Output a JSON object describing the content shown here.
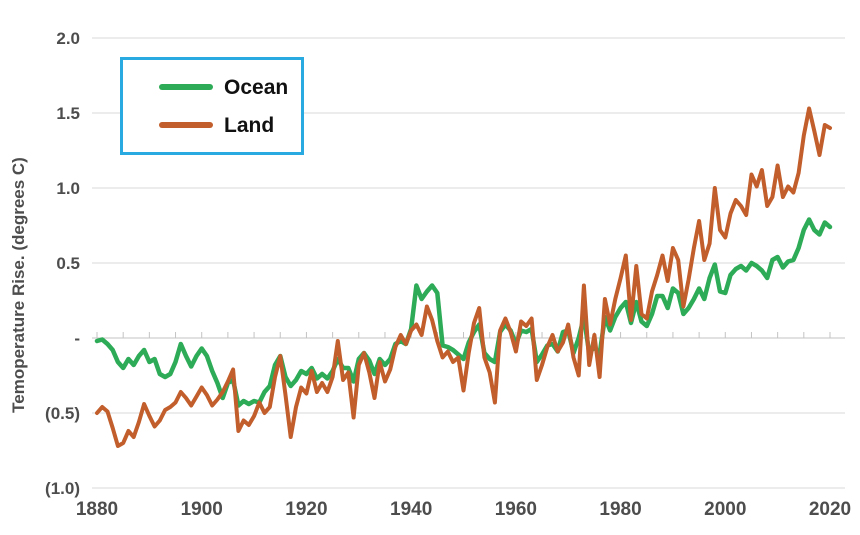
{
  "chart_data": {
    "type": "line",
    "title": "",
    "xlabel": "",
    "ylabel": "Temoperature Rise. (degrees C)",
    "xlim": [
      1880,
      2020
    ],
    "ylim": [
      -1.0,
      2.0
    ],
    "grid": true,
    "legend_position": "top-left",
    "x_ticks": [
      1880,
      1900,
      1920,
      1940,
      1960,
      1980,
      2000,
      2020
    ],
    "x_minor_tick_step": 5,
    "y_ticks": [
      {
        "value": 2.0,
        "label": "2.0"
      },
      {
        "value": 1.5,
        "label": "1.5"
      },
      {
        "value": 1.0,
        "label": "1.0"
      },
      {
        "value": 0.5,
        "label": "0.5"
      },
      {
        "value": 0.0,
        "label": "-"
      },
      {
        "value": -0.5,
        "label": "(0.5)"
      },
      {
        "value": -1.0,
        "label": "(1.0)"
      }
    ],
    "years": [
      1880,
      1881,
      1882,
      1883,
      1884,
      1885,
      1886,
      1887,
      1888,
      1889,
      1890,
      1891,
      1892,
      1893,
      1894,
      1895,
      1896,
      1897,
      1898,
      1899,
      1900,
      1901,
      1902,
      1903,
      1904,
      1905,
      1906,
      1907,
      1908,
      1909,
      1910,
      1911,
      1912,
      1913,
      1914,
      1915,
      1916,
      1917,
      1918,
      1919,
      1920,
      1921,
      1922,
      1923,
      1924,
      1925,
      1926,
      1927,
      1928,
      1929,
      1930,
      1931,
      1932,
      1933,
      1934,
      1935,
      1936,
      1937,
      1938,
      1939,
      1940,
      1941,
      1942,
      1943,
      1944,
      1945,
      1946,
      1947,
      1948,
      1949,
      1950,
      1951,
      1952,
      1953,
      1954,
      1955,
      1956,
      1957,
      1958,
      1959,
      1960,
      1961,
      1962,
      1963,
      1964,
      1965,
      1966,
      1967,
      1968,
      1969,
      1970,
      1971,
      1972,
      1973,
      1974,
      1975,
      1976,
      1977,
      1978,
      1979,
      1980,
      1981,
      1982,
      1983,
      1984,
      1985,
      1986,
      1987,
      1988,
      1989,
      1990,
      1991,
      1992,
      1993,
      1994,
      1995,
      1996,
      1997,
      1998,
      1999,
      2000,
      2001,
      2002,
      2003,
      2004,
      2005,
      2006,
      2007,
      2008,
      2009,
      2010,
      2011,
      2012,
      2013,
      2014,
      2015,
      2016,
      2017,
      2018,
      2019,
      2020
    ],
    "series": [
      {
        "name": "Ocean",
        "color": "#2dab57",
        "values": [
          -0.02,
          -0.01,
          -0.04,
          -0.08,
          -0.16,
          -0.2,
          -0.14,
          -0.18,
          -0.12,
          -0.08,
          -0.16,
          -0.14,
          -0.24,
          -0.26,
          -0.24,
          -0.16,
          -0.04,
          -0.12,
          -0.19,
          -0.12,
          -0.07,
          -0.12,
          -0.22,
          -0.3,
          -0.4,
          -0.3,
          -0.28,
          -0.45,
          -0.42,
          -0.44,
          -0.42,
          -0.43,
          -0.36,
          -0.32,
          -0.18,
          -0.12,
          -0.26,
          -0.32,
          -0.28,
          -0.22,
          -0.24,
          -0.2,
          -0.27,
          -0.24,
          -0.27,
          -0.22,
          -0.14,
          -0.2,
          -0.2,
          -0.29,
          -0.14,
          -0.1,
          -0.15,
          -0.24,
          -0.14,
          -0.18,
          -0.14,
          -0.04,
          -0.02,
          -0.04,
          0.06,
          0.35,
          0.26,
          0.31,
          0.35,
          0.3,
          -0.05,
          -0.06,
          -0.08,
          -0.11,
          -0.14,
          -0.03,
          0.04,
          0.09,
          -0.1,
          -0.14,
          -0.16,
          0.04,
          0.09,
          0.05,
          -0.04,
          0.05,
          0.04,
          0.06,
          -0.16,
          -0.11,
          -0.05,
          -0.04,
          -0.09,
          0.04,
          0.05,
          -0.1,
          0.0,
          0.14,
          -0.1,
          -0.06,
          -0.11,
          0.14,
          0.05,
          0.14,
          0.2,
          0.24,
          0.1,
          0.24,
          0.11,
          0.08,
          0.16,
          0.28,
          0.28,
          0.2,
          0.33,
          0.3,
          0.16,
          0.2,
          0.26,
          0.33,
          0.26,
          0.4,
          0.49,
          0.31,
          0.3,
          0.42,
          0.46,
          0.48,
          0.45,
          0.5,
          0.48,
          0.45,
          0.4,
          0.52,
          0.54,
          0.47,
          0.51,
          0.52,
          0.6,
          0.72,
          0.79,
          0.72,
          0.69,
          0.77,
          0.74
        ]
      },
      {
        "name": "Land",
        "color": "#c25e2b",
        "values": [
          -0.5,
          -0.46,
          -0.49,
          -0.6,
          -0.72,
          -0.7,
          -0.62,
          -0.66,
          -0.56,
          -0.44,
          -0.52,
          -0.59,
          -0.55,
          -0.48,
          -0.46,
          -0.43,
          -0.36,
          -0.4,
          -0.45,
          -0.39,
          -0.33,
          -0.38,
          -0.45,
          -0.41,
          -0.36,
          -0.29,
          -0.21,
          -0.62,
          -0.55,
          -0.58,
          -0.52,
          -0.43,
          -0.5,
          -0.46,
          -0.26,
          -0.12,
          -0.38,
          -0.66,
          -0.46,
          -0.33,
          -0.37,
          -0.22,
          -0.36,
          -0.3,
          -0.36,
          -0.26,
          -0.02,
          -0.28,
          -0.23,
          -0.53,
          -0.18,
          -0.1,
          -0.23,
          -0.4,
          -0.16,
          -0.29,
          -0.21,
          -0.06,
          0.02,
          -0.04,
          0.05,
          0.09,
          0.02,
          0.21,
          0.12,
          -0.02,
          -0.13,
          -0.09,
          -0.16,
          -0.13,
          -0.35,
          -0.1,
          0.1,
          0.2,
          -0.13,
          -0.23,
          -0.43,
          0.05,
          0.13,
          0.04,
          -0.09,
          0.11,
          0.08,
          0.13,
          -0.28,
          -0.18,
          -0.06,
          0.02,
          -0.09,
          -0.03,
          0.09,
          -0.13,
          -0.25,
          0.35,
          -0.18,
          0.02,
          -0.26,
          0.26,
          0.09,
          0.26,
          0.4,
          0.55,
          0.12,
          0.48,
          0.16,
          0.13,
          0.31,
          0.42,
          0.55,
          0.38,
          0.6,
          0.52,
          0.21,
          0.39,
          0.6,
          0.78,
          0.52,
          0.63,
          1.0,
          0.72,
          0.67,
          0.83,
          0.92,
          0.88,
          0.82,
          1.09,
          1.01,
          1.12,
          0.88,
          0.94,
          1.15,
          0.94,
          1.01,
          0.97,
          1.1,
          1.35,
          1.53,
          1.38,
          1.22,
          1.42,
          1.4
        ]
      }
    ]
  },
  "legend": {
    "border_color": "#29abe2",
    "items": [
      {
        "label": "Ocean",
        "color": "#2dab57"
      },
      {
        "label": "Land",
        "color": "#c25e2b"
      }
    ]
  },
  "colors": {
    "background": "#ffffff",
    "gridline": "#d9d9d9",
    "zero_axis": "#c3c3c3",
    "axis_text": "#4d4d4d"
  }
}
